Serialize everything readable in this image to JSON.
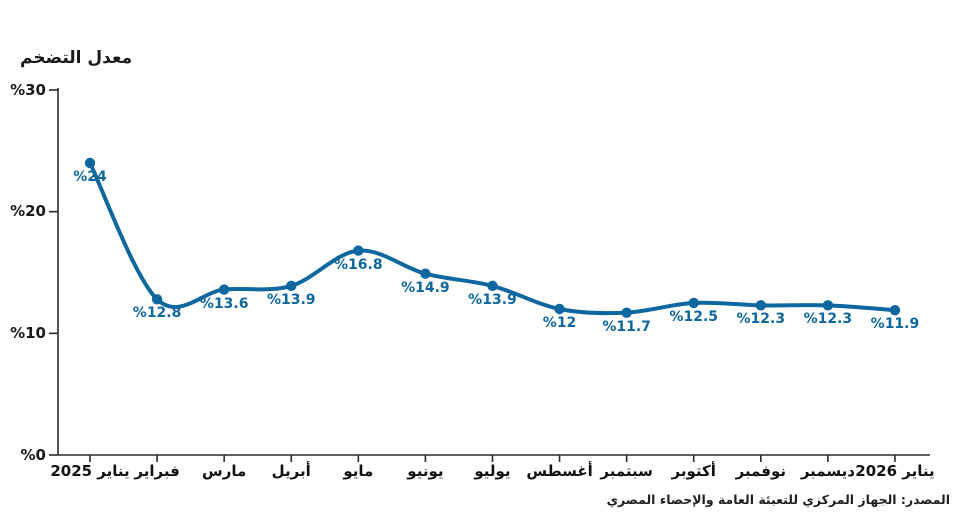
{
  "title": "معدل التضخم",
  "source": "المصدر: الجهاز المركزي للتعبئة العامة والإحصاء المصري",
  "colors": {
    "line": "#0e679e",
    "point": "#0e679e",
    "value_label": "#0e679e",
    "axis": "#2b2b2b",
    "text": "#1a1a1a"
  },
  "chart_data": {
    "type": "line",
    "title": "معدل التضخم",
    "categories": [
      "يناير 2025",
      "فبراير",
      "مارس",
      "أبريل",
      "مايو",
      "يونيو",
      "يوليو",
      "أغسطس",
      "سبتمبر",
      "أكتوبر",
      "نوفمبر",
      "ديسمبر",
      "يناير 2026"
    ],
    "values": [
      24,
      12.8,
      13.6,
      13.9,
      16.8,
      14.9,
      13.9,
      12,
      11.7,
      12.5,
      12.3,
      12.3,
      11.9
    ],
    "point_labels": [
      "%24",
      "%12.8",
      "%13.6",
      "%13.9",
      "%16.8",
      "%14.9",
      "%13.9",
      "%12",
      "%11.7",
      "%12.5",
      "%12.3",
      "%12.3",
      "%11.9"
    ],
    "xlabel": "",
    "ylabel": "",
    "ylim": [
      0,
      30
    ],
    "yticks": [
      0,
      10,
      20,
      30
    ],
    "ytick_labels": [
      "%0",
      "%10",
      "%20",
      "%30"
    ],
    "grid": false,
    "legend": false,
    "line_smooth": true
  }
}
